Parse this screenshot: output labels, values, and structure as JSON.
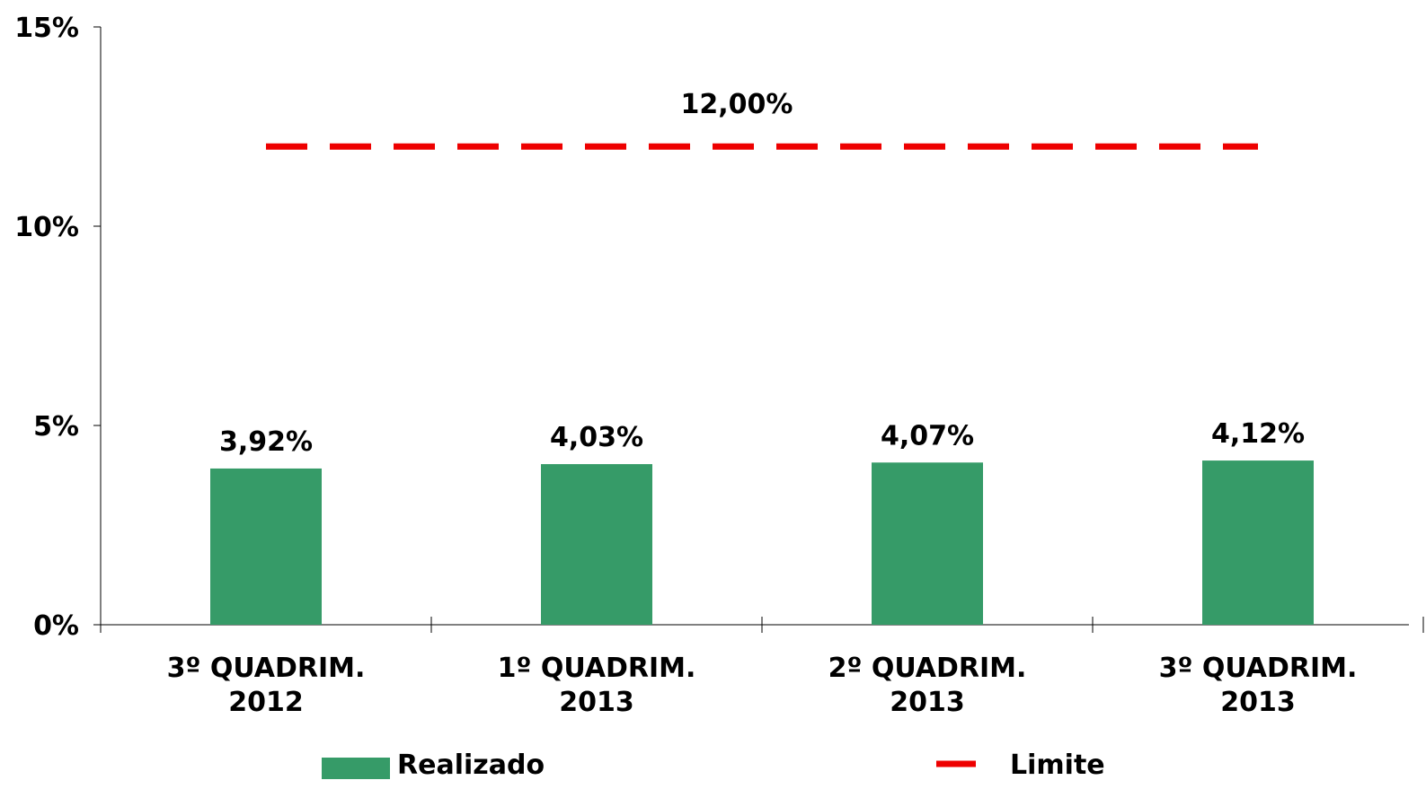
{
  "chart_data": {
    "type": "bar",
    "categories": [
      [
        "3º QUADRIM.",
        "2012"
      ],
      [
        "1º QUADRIM.",
        "2013"
      ],
      [
        "2º QUADRIM.",
        "2013"
      ],
      [
        "3º QUADRIM.",
        "2013"
      ]
    ],
    "series": [
      {
        "name": "Realizado",
        "type": "bar",
        "color": "#369b68",
        "values": [
          3.92,
          4.03,
          4.07,
          4.12
        ],
        "value_labels": [
          "3,92%",
          "4,03%",
          "4,07%",
          "4,12%"
        ]
      },
      {
        "name": "Limite",
        "type": "line",
        "dashed": true,
        "color": "#ee0000",
        "values": [
          12,
          12,
          12,
          12
        ]
      }
    ],
    "annotations": [
      {
        "text": "12,00%",
        "value": 12
      }
    ],
    "ylim": [
      0,
      15
    ],
    "yticks": [
      {
        "value": 0,
        "label": "0%"
      },
      {
        "value": 5,
        "label": "5%"
      },
      {
        "value": 10,
        "label": "10%"
      },
      {
        "value": 15,
        "label": "15%"
      }
    ],
    "grid": false,
    "legend": "bottom"
  }
}
